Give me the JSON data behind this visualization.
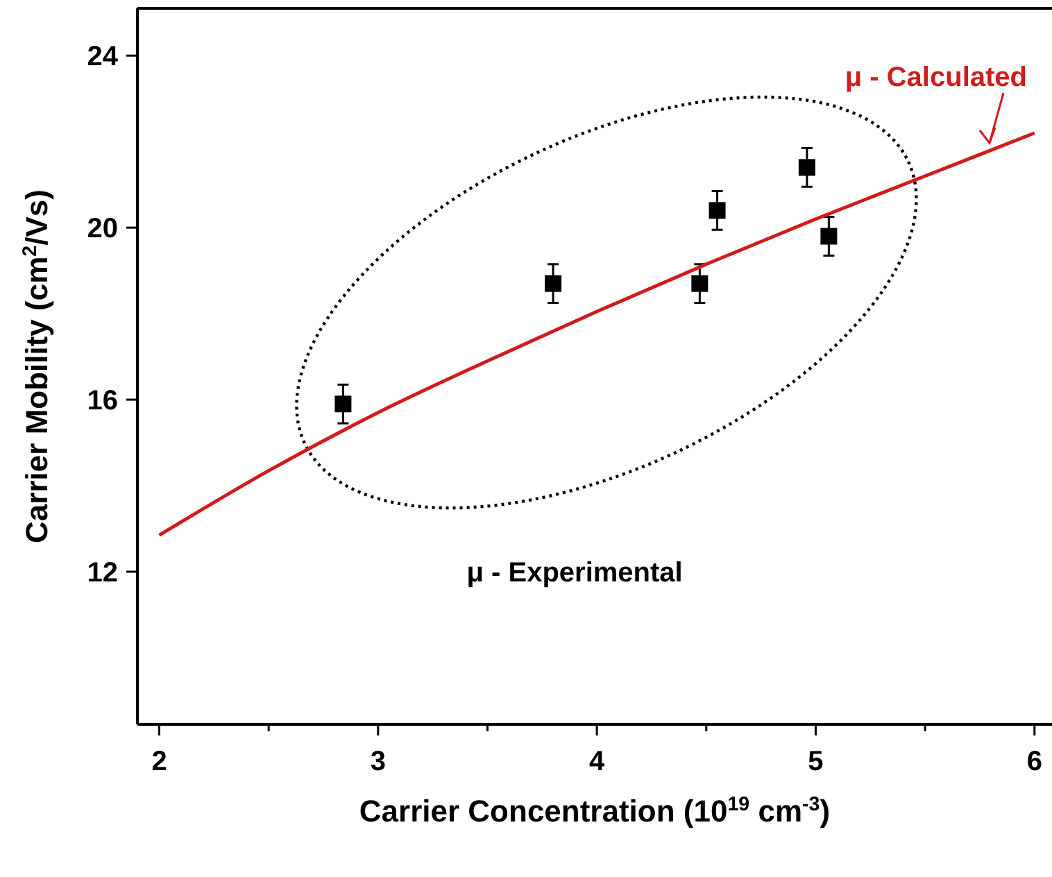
{
  "chart_data": {
    "type": "scatter",
    "xlabel": "Carrier Concentration (10$^{19}$ cm$^{-3}$)",
    "ylabel": "Carrier Mobility (cm$^{2}$/Vs)",
    "xlim": [
      1.9,
      6.08
    ],
    "ylim": [
      8.45,
      25.1
    ],
    "xticks": [
      2,
      {
        "value": 2.5,
        "label": null
      },
      3,
      {
        "value": 3.5,
        "label": null
      },
      4,
      {
        "value": 4.5,
        "label": null
      },
      5,
      {
        "value": 5.5,
        "label": null
      },
      6
    ],
    "yticks": [
      12,
      16,
      20,
      24
    ],
    "series": [
      {
        "name": "μ - Experimental",
        "color": "#000000",
        "marker": "square",
        "x": [
          2.84,
          3.8,
          4.47,
          4.55,
          4.96,
          5.06
        ],
        "values": [
          15.9,
          18.7,
          18.7,
          20.4,
          21.4,
          19.8
        ],
        "errors": [
          0.45,
          0.45,
          0.45,
          0.45,
          0.45,
          0.45
        ]
      },
      {
        "name": "μ - Calculated",
        "type": "line",
        "color": "#d01c1c",
        "x": [
          2,
          2.5,
          3,
          3.5,
          4,
          4.5,
          5,
          5.5,
          6
        ],
        "values": [
          12.85,
          14.35,
          15.7,
          16.9,
          18.05,
          19.15,
          20.2,
          21.2,
          22.2
        ]
      }
    ]
  }
}
